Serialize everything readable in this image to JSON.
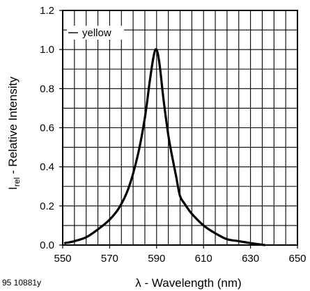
{
  "figure_id": "95 10881y",
  "chart_data": {
    "type": "line",
    "xlabel": "λ - Wavelength (nm)",
    "ylabel": {
      "prefix": "I",
      "subscript": "rel",
      "suffix": " - Relative Intensity"
    },
    "xlim": [
      550,
      650
    ],
    "ylim": [
      0.0,
      1.2
    ],
    "x_ticks": [
      550,
      570,
      590,
      610,
      630,
      650
    ],
    "x_tick_labels": [
      "550",
      "570",
      "590",
      "610",
      "630",
      "650"
    ],
    "y_ticks": [
      0.0,
      0.2,
      0.4,
      0.6,
      0.8,
      1.0,
      1.2
    ],
    "y_tick_labels": [
      "0.0",
      "0.2",
      "0.4",
      "0.6",
      "0.8",
      "1.0",
      "1.2"
    ],
    "grid": true,
    "grid_step_x": 5,
    "grid_step_y": 0.1,
    "legend_position": "top-left",
    "series": [
      {
        "name": "yellow",
        "color": "#000000",
        "x": [
          551,
          555,
          560,
          565,
          570,
          574,
          578,
          582,
          585,
          587,
          588.5,
          589.5,
          590.5,
          591.5,
          593,
          595,
          597,
          598.5,
          600,
          602,
          605,
          610,
          615,
          620,
          625,
          630,
          636
        ],
        "y": [
          0.01,
          0.02,
          0.04,
          0.08,
          0.13,
          0.19,
          0.29,
          0.46,
          0.65,
          0.83,
          0.95,
          1.0,
          0.98,
          0.9,
          0.74,
          0.56,
          0.43,
          0.34,
          0.25,
          0.21,
          0.16,
          0.1,
          0.06,
          0.03,
          0.02,
          0.01,
          0.0
        ]
      }
    ]
  }
}
